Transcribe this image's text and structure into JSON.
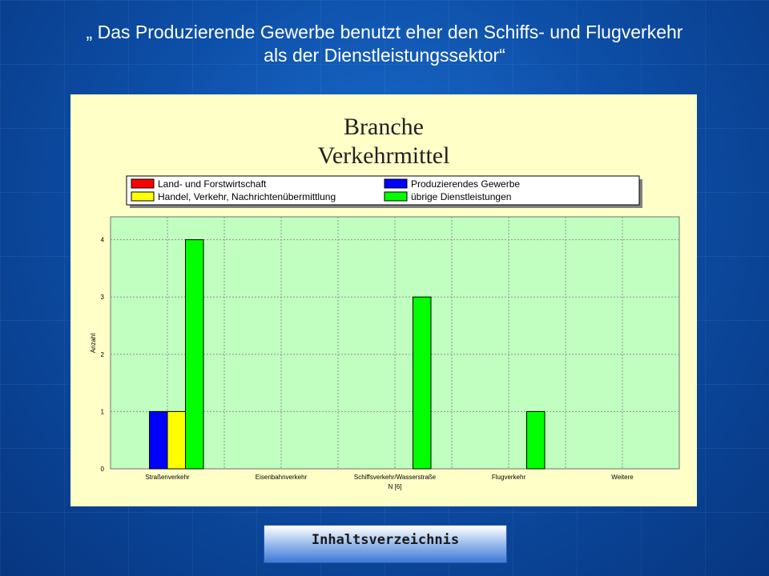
{
  "slide": {
    "title_line1": "„ Das Produzierende Gewerbe benutzt eher den Schiffs- und Flugverkehr",
    "title_line2": "als der Dienstleistungssektor“"
  },
  "nav": {
    "button_label": "Inhaltsverzeichnis"
  },
  "chart_data": {
    "type": "bar",
    "title_lines": [
      "Branche",
      "Verkehrmittel"
    ],
    "xlabel": "N [6]",
    "ylabel": "Anzahl",
    "ylim": [
      0,
      4.4
    ],
    "yticks": [
      0,
      1,
      2,
      3,
      4
    ],
    "grid": true,
    "legend_position": "top",
    "categories": [
      "Straßenverkehr",
      "Eisenbahnverkehr",
      "Schiffsverkehr/Wasserstraße",
      "Flugverkehr",
      "Weitere"
    ],
    "series": [
      {
        "name": "Land- und Forstwirtschaft",
        "color": "#ff0000",
        "values": [
          0,
          0,
          0,
          0,
          0
        ]
      },
      {
        "name": "Produzierendes Gewerbe",
        "color": "#0000ff",
        "values": [
          1,
          0,
          0,
          0,
          0
        ]
      },
      {
        "name": "Handel, Verkehr, Nachrichtenübermittlung",
        "color": "#ffff00",
        "values": [
          1,
          0,
          0,
          0,
          0
        ]
      },
      {
        "name": "übrige Dienstleistungen",
        "color": "#00ff00",
        "values": [
          4,
          0,
          3,
          1,
          0
        ]
      }
    ],
    "colors": {
      "panel_background": "#ffffc8",
      "plot_background": "#c0ffc0",
      "grid": "#909090"
    }
  }
}
